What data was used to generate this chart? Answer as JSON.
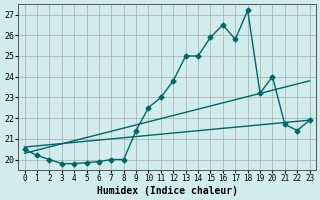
{
  "xlabel": "Humidex (Indice chaleur)",
  "ylabel": "",
  "bg_color": "#d0ecec",
  "grid_color": "#aaaaaa",
  "line_color": "#006666",
  "xlim": [
    -0.5,
    23.5
  ],
  "ylim": [
    19.5,
    27.5
  ],
  "yticks": [
    20,
    21,
    22,
    23,
    24,
    25,
    26,
    27
  ],
  "xticks": [
    0,
    1,
    2,
    3,
    4,
    5,
    6,
    7,
    8,
    9,
    10,
    11,
    12,
    13,
    14,
    15,
    16,
    17,
    18,
    19,
    20,
    21,
    22,
    23
  ],
  "series1_x": [
    0,
    1,
    2,
    3,
    4,
    5,
    6,
    7,
    8,
    9,
    10,
    11,
    12,
    13,
    14,
    15,
    16,
    17,
    18,
    19,
    20,
    21,
    22,
    23
  ],
  "series1_y": [
    20.5,
    20.2,
    20.0,
    19.8,
    19.8,
    19.85,
    19.9,
    20.0,
    20.0,
    21.4,
    22.5,
    23.0,
    23.8,
    25.0,
    25.0,
    25.9,
    26.5,
    25.8,
    27.2,
    23.2,
    24.0,
    21.7,
    21.4,
    21.9
  ],
  "series2_x": [
    0,
    23
  ],
  "series2_y": [
    20.3,
    23.8
  ],
  "series3_x": [
    0,
    23
  ],
  "series3_y": [
    20.6,
    21.9
  ]
}
